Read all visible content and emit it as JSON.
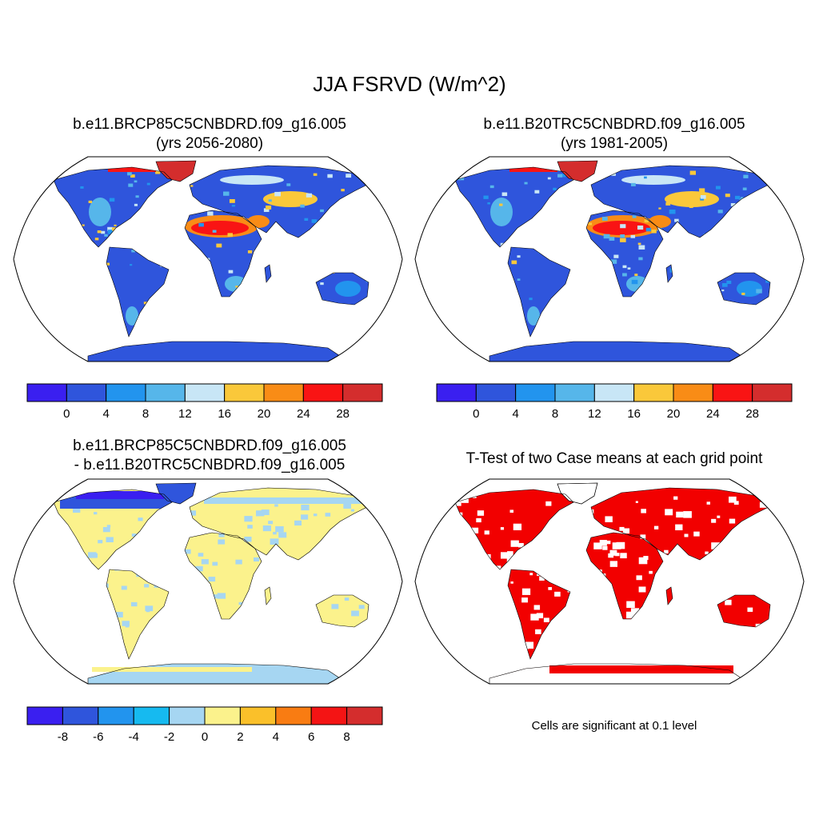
{
  "title": "JJA FSRVD (W/m^2)",
  "panels": [
    {
      "id": "case1",
      "title_line1": "b.e11.BRCP85C5CNBDRD.f09_g16.005",
      "title_line2": "(yrs 2056-2080)"
    },
    {
      "id": "case2",
      "title_line1": "b.e11.B20TRC5CNBDRD.f09_g16.005",
      "title_line2": "(yrs 1981-2005)"
    },
    {
      "id": "diff",
      "title_line1": "b.e11.BRCP85C5CNBDRD.f09_g16.005",
      "title_line2": "- b.e11.B20TRC5CNBDRD.f09_g16.005"
    },
    {
      "id": "ttest",
      "title_line1": "T-Test of two Case means at each grid point"
    }
  ],
  "colorbars": {
    "main": {
      "colors": [
        "#3a1ff0",
        "#2f55dc",
        "#2294ee",
        "#56b6ea",
        "#c8e6f6",
        "#fac83a",
        "#f98c16",
        "#f91414",
        "#d42d2d"
      ],
      "labels": [
        "0",
        "4",
        "8",
        "12",
        "16",
        "20",
        "24",
        "28"
      ]
    },
    "diff": {
      "colors": [
        "#3a1ff0",
        "#2f55dc",
        "#2294ee",
        "#16baf0",
        "#a6d6f2",
        "#fbf28c",
        "#fac02a",
        "#f97c12",
        "#f41414",
        "#d42d2d"
      ],
      "labels": [
        "-8",
        "-6",
        "-4",
        "-2",
        "0",
        "2",
        "4",
        "6",
        "8"
      ]
    }
  },
  "significance_note": "Cells are significant at 0.1 level",
  "map_colors": {
    "ocean": "#ffffff",
    "significant": "#f20000",
    "land_low": "#2f55dc"
  }
}
